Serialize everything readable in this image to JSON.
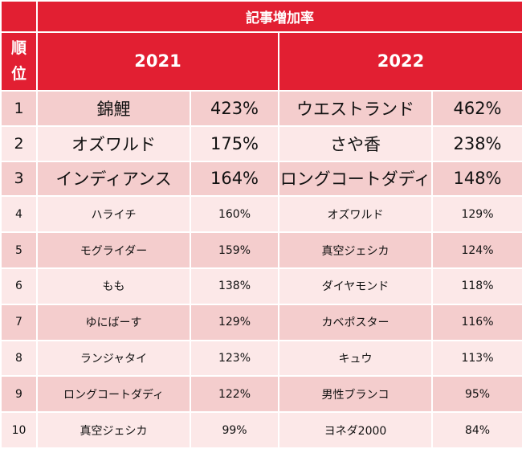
{
  "header": {
    "title": "記事増加率",
    "rank_label_1": "順",
    "rank_label_2": "位",
    "year_a": "2021",
    "year_b": "2022"
  },
  "rows": [
    {
      "rank": "1",
      "name_a": "錦鯉",
      "rate_a": "423%",
      "name_b": "ウエストランド",
      "rate_b": "462%"
    },
    {
      "rank": "2",
      "name_a": "オズワルド",
      "rate_a": "175%",
      "name_b": "さや香",
      "rate_b": "238%"
    },
    {
      "rank": "3",
      "name_a": "インディアンス",
      "rate_a": "164%",
      "name_b": "ロングコートダディ",
      "rate_b": "148%"
    },
    {
      "rank": "4",
      "name_a": "ハライチ",
      "rate_a": "160%",
      "name_b": "オズワルド",
      "rate_b": "129%"
    },
    {
      "rank": "5",
      "name_a": "モグライダー",
      "rate_a": "159%",
      "name_b": "真空ジェシカ",
      "rate_b": "124%"
    },
    {
      "rank": "6",
      "name_a": "もも",
      "rate_a": "138%",
      "name_b": "ダイヤモンド",
      "rate_b": "118%"
    },
    {
      "rank": "7",
      "name_a": "ゆにばーす",
      "rate_a": "129%",
      "name_b": "カベポスター",
      "rate_b": "116%"
    },
    {
      "rank": "8",
      "name_a": "ランジャタイ",
      "rate_a": "123%",
      "name_b": "キュウ",
      "rate_b": "113%"
    },
    {
      "rank": "9",
      "name_a": "ロングコートダディ",
      "rate_a": "122%",
      "name_b": "男性ブランコ",
      "rate_b": "95%"
    },
    {
      "rank": "10",
      "name_a": "真空ジェシカ",
      "rate_a": "99%",
      "name_b": "ヨネダ2000",
      "rate_b": "84%"
    }
  ]
}
